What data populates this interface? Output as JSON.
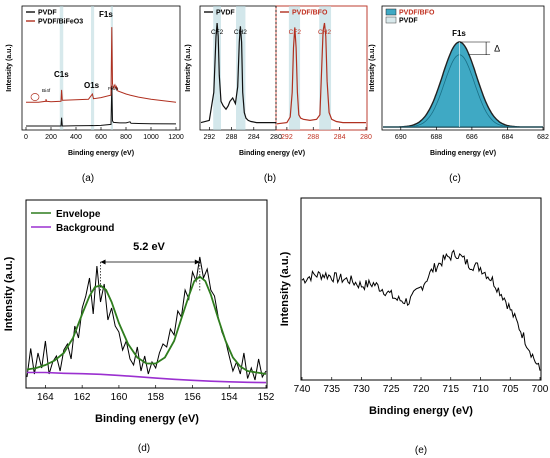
{
  "figure": {
    "panel_letters": [
      "(a)",
      "(b)",
      "(c)",
      "(d)",
      "(e)"
    ]
  },
  "chart_data": [
    {
      "id": "a",
      "type": "line",
      "xlabel": "Binding energy (eV)",
      "ylabel": "Intensity (a.u.)",
      "xlim": [
        0,
        1200
      ],
      "xticks": [
        "0",
        "200",
        "400",
        "600",
        "800",
        "1000",
        "1200"
      ],
      "legend": [
        "PVDF",
        "PVDF/BiFeO3"
      ],
      "peak_labels": [
        "C1s",
        "O1s",
        "F1s"
      ],
      "small_labels": [
        "Bi4f",
        "Fe2p"
      ],
      "colors": {
        "pvdf": "#111111",
        "composite": "#b03020",
        "shade": "#b6d7dd"
      },
      "series": [
        {
          "name": "PVDF",
          "x": [
            0,
            100,
            200,
            280,
            285,
            290,
            300,
            400,
            500,
            531,
            540,
            600,
            680,
            686,
            692,
            700,
            750,
            800,
            832,
            840,
            900,
            1000,
            1200
          ],
          "y": [
            1,
            1,
            1,
            1,
            9,
            1,
            1,
            1.2,
            1.4,
            1.5,
            1.4,
            1.6,
            2.5,
            40,
            6,
            4.5,
            4,
            4,
            5,
            3.6,
            3.4,
            3.2,
            3
          ]
        },
        {
          "name": "PVDF/BiFeO3",
          "x": [
            0,
            100,
            158,
            160,
            165,
            200,
            280,
            285,
            290,
            300,
            400,
            500,
            531,
            540,
            600,
            680,
            686,
            692,
            700,
            711,
            720,
            724,
            735,
            800,
            832,
            900,
            1000,
            1200
          ],
          "y": [
            24,
            24,
            25,
            27,
            25,
            24.5,
            25,
            36,
            26,
            26,
            26.5,
            27,
            32,
            27.5,
            28.5,
            31,
            97,
            42,
            38,
            41,
            37,
            39,
            35,
            32,
            31,
            29,
            27,
            24
          ]
        }
      ]
    },
    {
      "id": "b",
      "type": "line",
      "xlabel": "Binding energy (eV)",
      "ylabel": "Intensity (a.u.)",
      "xlim_left": [
        293.5,
        280
      ],
      "xlim_right": [
        293.5,
        280
      ],
      "xticks": [
        "292",
        "288",
        "284",
        "280"
      ],
      "xticks_right": [
        "292",
        "288",
        "284",
        "280"
      ],
      "legend": [
        "PVDF",
        "PVDF/BFO"
      ],
      "peak_labels": [
        "CF2",
        "CH2",
        "CF2",
        "CH2"
      ],
      "colors": {
        "pvdf": "#111111",
        "composite": "#b03020",
        "shade": "#b6d7dd"
      },
      "series": [
        {
          "name": "PVDF",
          "x": [
            293.5,
            292,
            291.2,
            290.8,
            290.6,
            290.4,
            290.2,
            289.9,
            289.5,
            289,
            288.6,
            288.3,
            287.8,
            287.3,
            286.9,
            286.6,
            286.4,
            286.2,
            286,
            285.7,
            285.4,
            285,
            284.5,
            283.5,
            282.5,
            280
          ],
          "y": [
            3,
            5,
            30,
            80,
            92,
            80,
            45,
            22,
            18,
            15,
            18,
            22,
            25,
            20,
            35,
            75,
            89,
            75,
            30,
            12,
            7,
            5,
            4,
            3,
            3,
            3
          ]
        },
        {
          "name": "PVDF/BFO",
          "x": [
            293.5,
            292,
            291.5,
            291.2,
            291,
            290.8,
            290.6,
            290.4,
            290.2,
            289.9,
            289.5,
            288.5,
            287.5,
            287,
            286.8,
            286.5,
            286.3,
            286.1,
            285.9,
            285.6,
            285.2,
            284.5,
            283.5,
            280
          ],
          "y": [
            2,
            3,
            8,
            30,
            70,
            88,
            70,
            30,
            10,
            7,
            6,
            5,
            6,
            10,
            40,
            85,
            92,
            80,
            40,
            12,
            6,
            4,
            3,
            3
          ]
        }
      ]
    },
    {
      "id": "c",
      "type": "area",
      "xlabel": "Binding energy (eV)",
      "ylabel": "Intensity (a.u.)",
      "xlim": [
        691,
        682
      ],
      "xticks": [
        "690",
        "688",
        "686",
        "684",
        "682"
      ],
      "legend": [
        "PVDF/BFO",
        "PVDF"
      ],
      "peak_label": "F1s",
      "delta_label": "Δ",
      "colors": {
        "fill": "#3fa9c4",
        "outline": "#222222",
        "pvdf_fill": "#d9e9ec"
      },
      "series": [
        {
          "name": "PVDF/BFO",
          "center": 686.7,
          "height": 100,
          "width": 0.95
        },
        {
          "name": "PVDF",
          "center": 686.7,
          "height": 85,
          "width": 0.85
        }
      ]
    },
    {
      "id": "d",
      "type": "line",
      "xlabel": "Binding energy (eV)",
      "ylabel": "Intensity (a.u.)",
      "xlim": [
        165,
        152
      ],
      "ylim": [
        0,
        100
      ],
      "xticks": [
        "164",
        "162",
        "160",
        "158",
        "156",
        "154",
        "152"
      ],
      "legend": [
        "Envelope",
        "Background"
      ],
      "annotation": "5.2 eV",
      "colors": {
        "raw": "#000000",
        "envelope": "#2f7d1e",
        "background": "#9b30d0"
      },
      "series": [
        {
          "name": "raw",
          "x": [
            165,
            164.8,
            164.6,
            164.4,
            164.2,
            164,
            163.8,
            163.6,
            163.4,
            163.2,
            163,
            162.8,
            162.6,
            162.4,
            162.2,
            162,
            161.8,
            161.6,
            161.4,
            161.2,
            161,
            160.8,
            160.6,
            160.4,
            160.2,
            160,
            159.8,
            159.6,
            159.4,
            159.2,
            159,
            158.8,
            158.6,
            158.4,
            158.2,
            158,
            157.8,
            157.6,
            157.4,
            157.2,
            157,
            156.8,
            156.6,
            156.4,
            156.2,
            156,
            155.8,
            155.6,
            155.4,
            155.2,
            155,
            154.8,
            154.6,
            154.4,
            154.2,
            154,
            153.8,
            153.6,
            153.4,
            153.2,
            153,
            152.8,
            152.6,
            152.4,
            152.2,
            152
          ],
          "y": [
            6,
            25,
            8,
            22,
            12,
            30,
            8,
            16,
            20,
            10,
            24,
            28,
            18,
            40,
            32,
            52,
            60,
            72,
            48,
            80,
            56,
            68,
            44,
            52,
            40,
            36,
            24,
            30,
            18,
            14,
            26,
            10,
            20,
            8,
            16,
            12,
            22,
            28,
            26,
            38,
            34,
            50,
            46,
            64,
            58,
            76,
            70,
            86,
            72,
            78,
            64,
            60,
            46,
            36,
            30,
            20,
            10,
            16,
            8,
            22,
            5,
            12,
            4,
            18,
            6,
            10
          ]
        },
        {
          "name": "Envelope",
          "x": [
            165,
            164.5,
            164,
            163.5,
            163,
            162.5,
            162,
            161.6,
            161.3,
            161,
            160.7,
            160.4,
            160,
            159.5,
            159,
            158.5,
            158,
            157.5,
            157,
            156.6,
            156.2,
            155.9,
            155.6,
            155.3,
            155,
            154.6,
            154.2,
            153.8,
            153.4,
            153,
            152.5,
            152
          ],
          "y": [
            11,
            12,
            14,
            17,
            22,
            32,
            48,
            60,
            66,
            67,
            64,
            56,
            42,
            28,
            19,
            15,
            15,
            19,
            30,
            45,
            60,
            70,
            73,
            70,
            61,
            45,
            30,
            19,
            13,
            10,
            9,
            8
          ]
        },
        {
          "name": "Background",
          "x": [
            165,
            164,
            163,
            162,
            161,
            160,
            159,
            158,
            157,
            156,
            155,
            154,
            153,
            152
          ],
          "y": [
            9,
            9,
            8.5,
            8.2,
            7.8,
            7.1,
            6.2,
            5.3,
            4.5,
            3.8,
            3.2,
            2.8,
            2.5,
            2.3
          ]
        }
      ]
    },
    {
      "id": "e",
      "type": "line",
      "xlabel": "Binding energy (eV)",
      "ylabel": "Intensity (a.u.)",
      "xlim": [
        740,
        700
      ],
      "xticks": [
        "740",
        "735",
        "730",
        "725",
        "720",
        "715",
        "710",
        "705",
        "700"
      ],
      "colors": {
        "line": "#000000"
      },
      "series": [
        {
          "name": "raw",
          "x": [
            740,
            738,
            736,
            734,
            732,
            730,
            728,
            726,
            724,
            722,
            720,
            718,
            716,
            714,
            712,
            710,
            708,
            706,
            704,
            702,
            700
          ],
          "y": [
            55,
            58,
            58,
            56,
            55,
            52,
            53,
            49,
            44,
            43,
            51,
            61,
            67,
            70,
            64,
            62,
            55,
            45,
            32,
            18,
            4
          ]
        }
      ]
    }
  ]
}
